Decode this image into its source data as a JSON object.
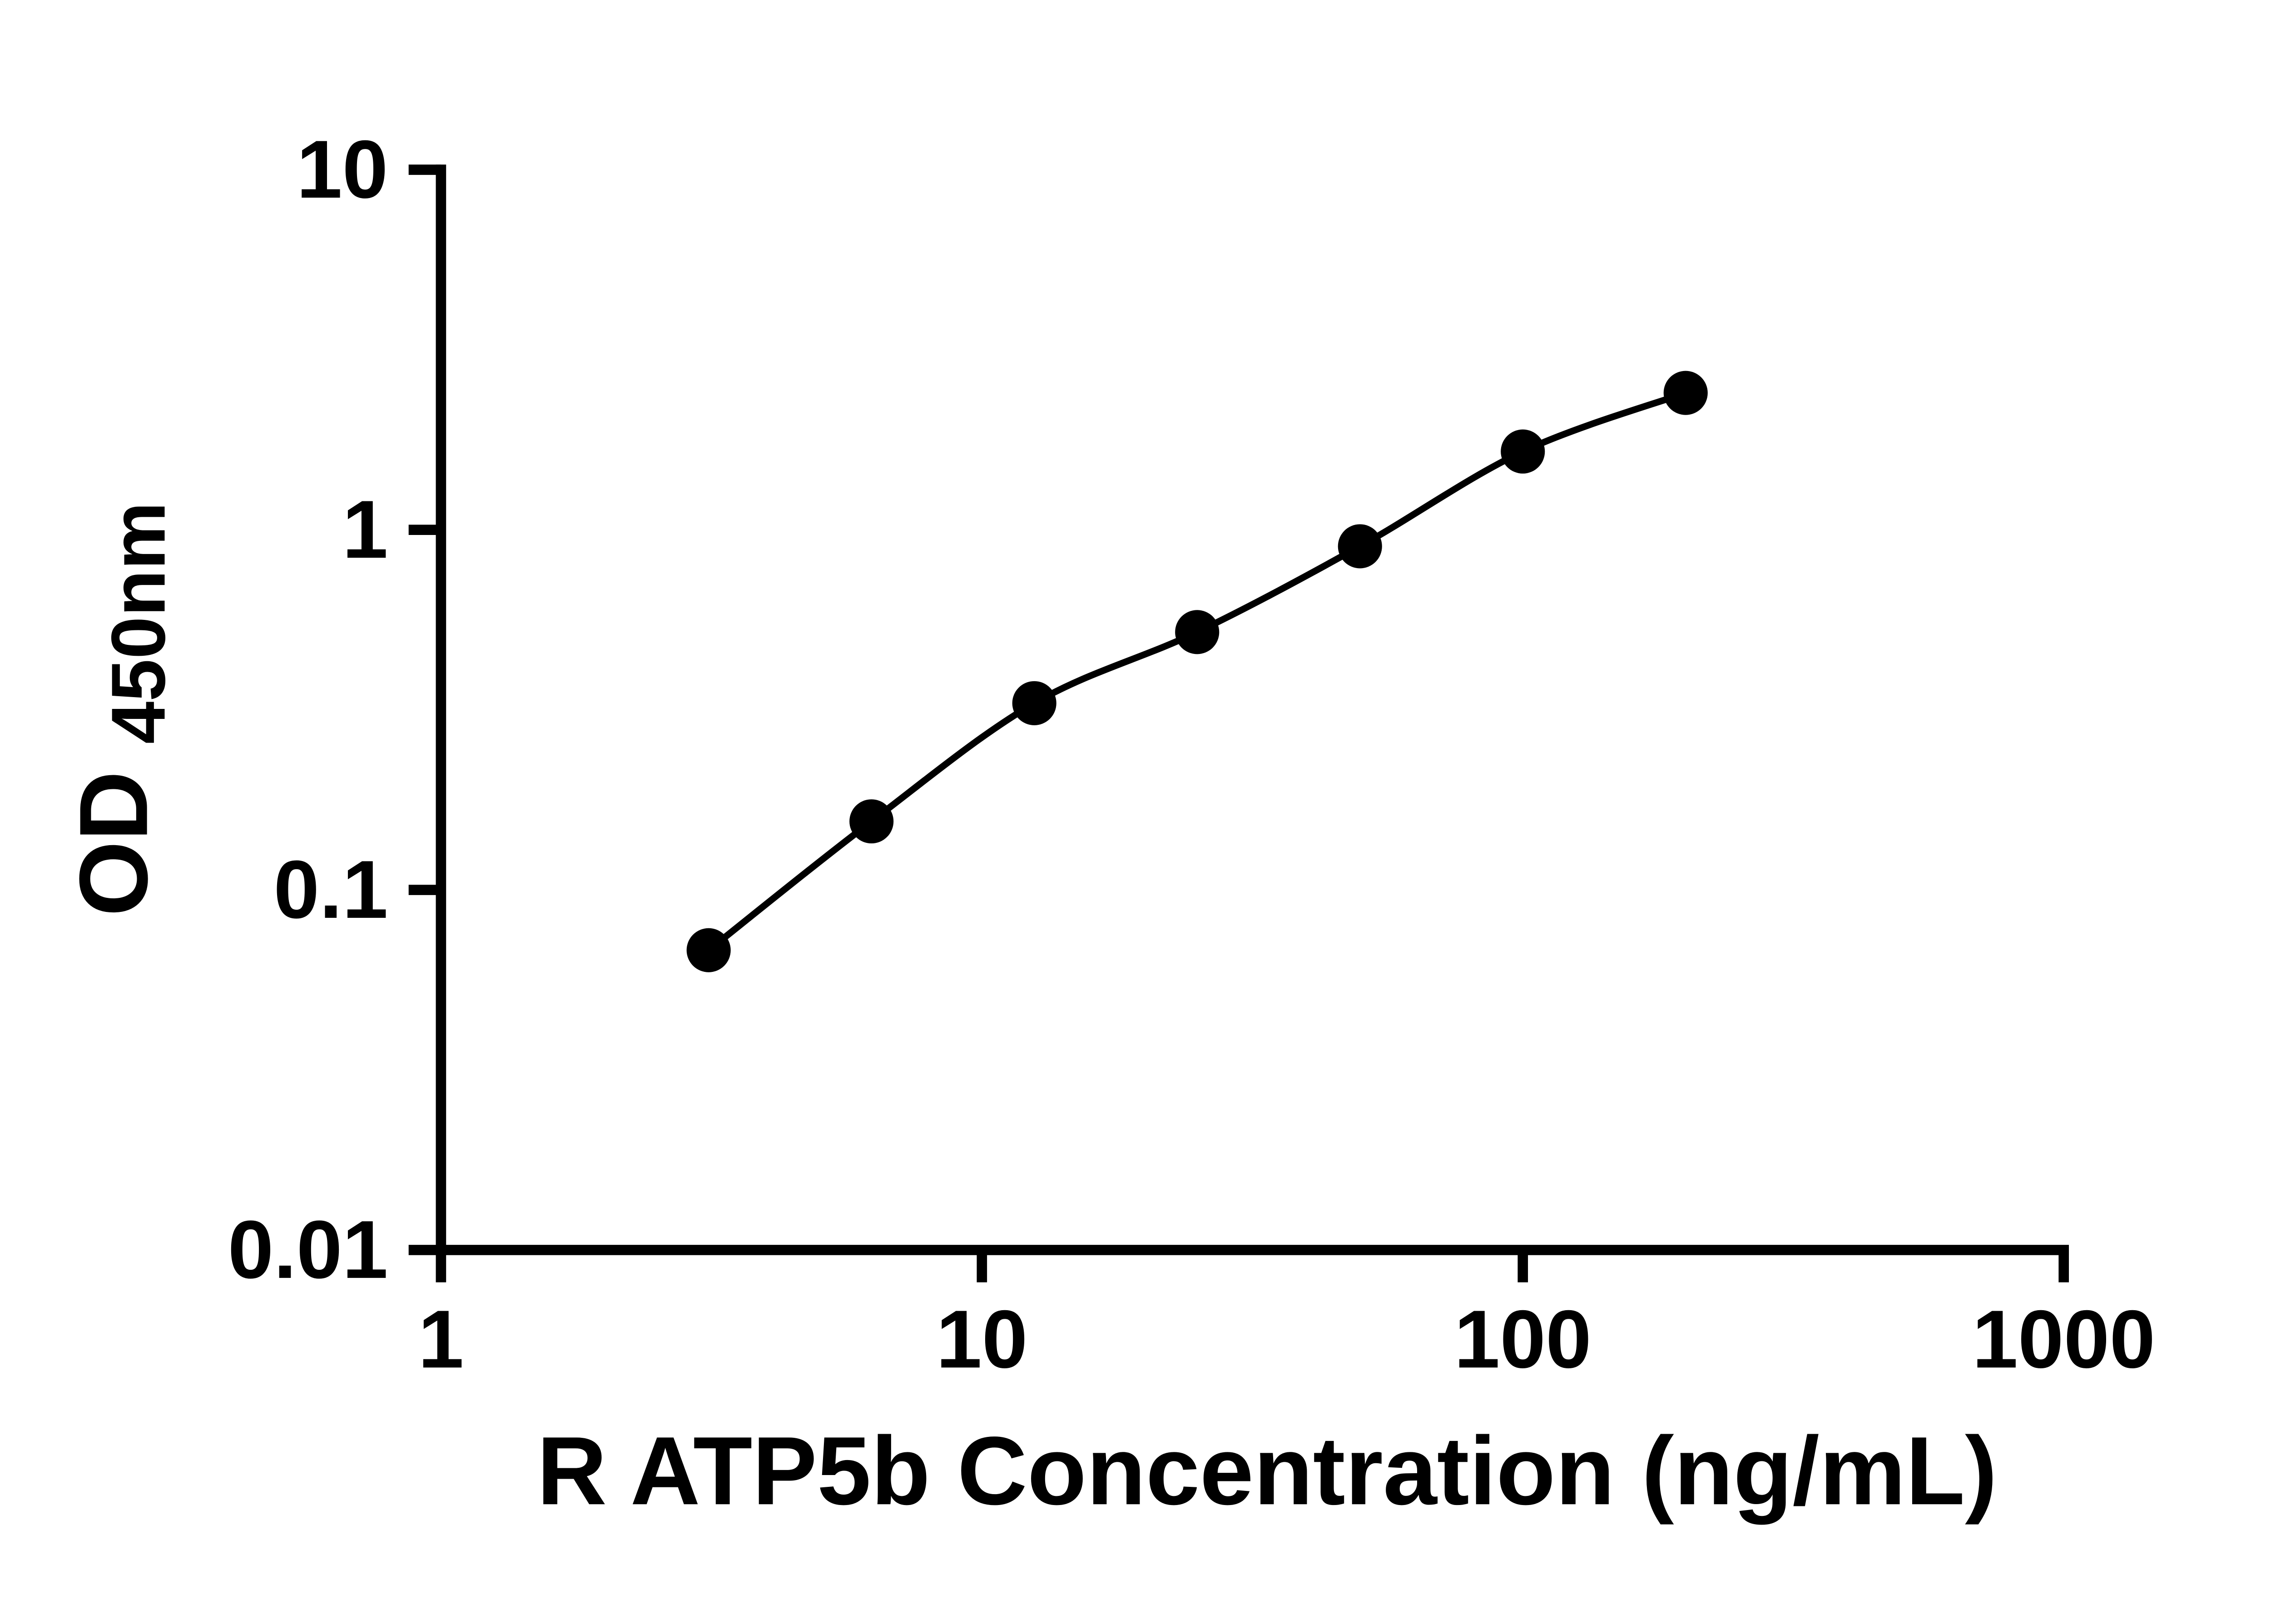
{
  "page": {
    "background": "#ffffff"
  },
  "chart_data": {
    "type": "scatter",
    "x": [
      3.125,
      6.25,
      12.5,
      25,
      50,
      100,
      200
    ],
    "y": [
      0.068,
      0.155,
      0.33,
      0.52,
      0.9,
      1.65,
      2.4
    ],
    "xlabel": "R ATP5b Concentration (ng/mL)",
    "ylabel_main": "OD",
    "ylabel_sub": "450nm",
    "x_scale": "log",
    "y_scale": "log",
    "xlim": [
      1,
      1000
    ],
    "ylim": [
      0.01,
      10
    ],
    "x_ticks": [
      1,
      10,
      100,
      1000
    ],
    "x_tick_labels": [
      "1",
      "10",
      "100",
      "1000"
    ],
    "y_ticks": [
      0.01,
      0.1,
      1,
      10
    ],
    "y_tick_labels": [
      "0.01",
      "0.1",
      "1",
      "10"
    ],
    "grid": false,
    "legend": "none",
    "marker_color": "#000000",
    "line_color": "#000000",
    "axis_color": "#000000"
  }
}
